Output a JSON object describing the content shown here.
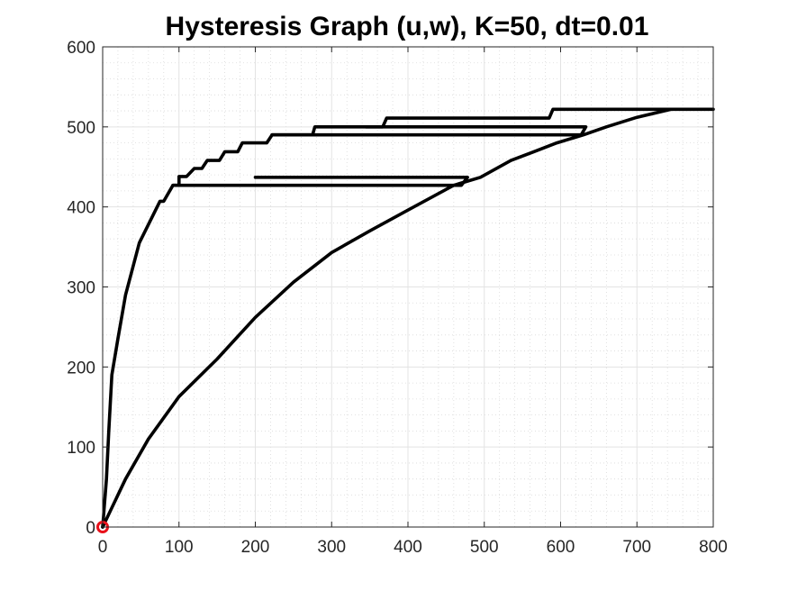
{
  "chart_data": {
    "type": "line",
    "title": "Hysteresis Graph (u,w), K=50, dt=0.01",
    "xlabel": "",
    "ylabel": "",
    "xlim": [
      0,
      800
    ],
    "ylim": [
      0,
      600
    ],
    "x_ticks": [
      0,
      100,
      200,
      300,
      400,
      500,
      600,
      700,
      800
    ],
    "y_ticks": [
      0,
      100,
      200,
      300,
      400,
      500,
      600
    ],
    "x_tick_labels": [
      "0",
      "100",
      "200",
      "300",
      "400",
      "500",
      "600",
      "700",
      "800"
    ],
    "y_tick_labels": [
      "0",
      "100",
      "200",
      "300",
      "400",
      "500",
      "600"
    ],
    "grid": "major and minor",
    "minor_step": 20,
    "line_color": "#000000",
    "marker_color": "#e8101a",
    "series": [
      {
        "style": "upper loading branch",
        "points": [
          [
            0,
            0
          ],
          [
            5,
            60
          ],
          [
            8,
            120
          ],
          [
            12,
            190
          ],
          [
            20,
            235
          ],
          [
            30,
            290
          ],
          [
            48,
            355
          ],
          [
            75,
            407
          ],
          [
            80,
            407
          ],
          [
            92,
            427
          ],
          [
            100,
            427
          ],
          [
            100,
            438
          ],
          [
            110,
            438
          ],
          [
            120,
            448
          ],
          [
            130,
            448
          ],
          [
            137,
            458
          ],
          [
            153,
            458
          ],
          [
            160,
            469
          ],
          [
            177,
            469
          ],
          [
            183,
            480
          ],
          [
            215,
            480
          ],
          [
            222,
            490
          ],
          [
            275,
            490
          ],
          [
            278,
            500
          ],
          [
            367,
            500
          ],
          [
            372,
            511
          ],
          [
            585,
            511
          ],
          [
            590,
            522
          ],
          [
            800,
            522
          ]
        ]
      },
      {
        "style": "unloading branch A",
        "points": [
          [
            92,
            427
          ],
          [
            470,
            427
          ],
          [
            478,
            437
          ],
          [
            200,
            437
          ]
        ]
      },
      {
        "style": "unloading branch B",
        "points": [
          [
            222,
            490
          ],
          [
            627,
            490
          ],
          [
            633,
            500
          ],
          [
            345,
            500
          ]
        ]
      },
      {
        "style": "lower reloading branch",
        "points": [
          [
            0,
            0
          ],
          [
            30,
            60
          ],
          [
            60,
            110
          ],
          [
            100,
            163
          ],
          [
            150,
            210
          ],
          [
            200,
            262
          ],
          [
            250,
            306
          ],
          [
            300,
            343
          ],
          [
            350,
            370
          ],
          [
            400,
            396
          ],
          [
            460,
            427
          ],
          [
            495,
            437
          ],
          [
            535,
            458
          ],
          [
            565,
            469
          ],
          [
            595,
            480
          ],
          [
            630,
            490
          ],
          [
            660,
            500
          ],
          [
            700,
            512
          ],
          [
            745,
            522
          ]
        ]
      }
    ],
    "markers": [
      {
        "shape": "circle",
        "x": 0,
        "y": 0
      }
    ]
  }
}
